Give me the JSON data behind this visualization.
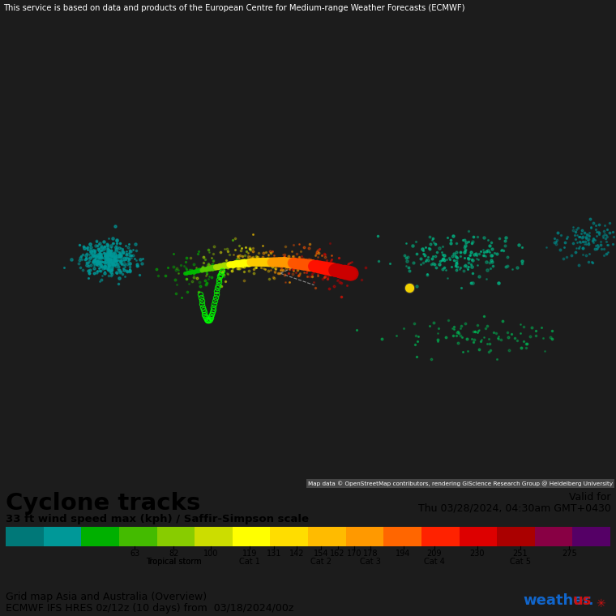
{
  "title_top": "This service is based on data and products of the European Centre for Medium-range Weather Forecasts (ECMWF)",
  "map_credit": "Map data © OpenStreetMap contributors, rendering GIScience Research Group @ Heidelberg University",
  "section_title": "Cyclone tracks",
  "section_subtitle": "33 ft wind speed max (kph) / Saffir-Simpson scale",
  "valid_for_label": "Valid for",
  "valid_for_date": "Thu 03/28/2024, 04:30am GMT+0430",
  "grid_map_label": "Grid map Asia and Australia (Overview)",
  "ecmwf_label": "ECMWF IFS HRES 0z/12z (10 days) from  03/18/2024/00z",
  "colorbar_colors": [
    "#007878",
    "#009898",
    "#00b000",
    "#44bb00",
    "#88cc00",
    "#ccdd00",
    "#ffff00",
    "#ffdd00",
    "#ffbb00",
    "#ff9900",
    "#ff6600",
    "#ff2200",
    "#dd0000",
    "#aa0000",
    "#880044",
    "#550066"
  ],
  "colorbar_labels": [
    {
      "val": 63,
      "num": "63",
      "cat": ""
    },
    {
      "val": 82,
      "num": "82",
      "cat": "Tropical storm"
    },
    {
      "val": 100,
      "num": "100",
      "cat": ""
    },
    {
      "val": 119,
      "num": "119",
      "cat": "Cat 1"
    },
    {
      "val": 131,
      "num": "131",
      "cat": ""
    },
    {
      "val": 142,
      "num": "142",
      "cat": ""
    },
    {
      "val": 154,
      "num": "154",
      "cat": "Cat 2"
    },
    {
      "val": 162,
      "num": "162",
      "cat": ""
    },
    {
      "val": 170,
      "num": "170",
      "cat": ""
    },
    {
      "val": 178,
      "num": "178",
      "cat": "Cat 3"
    },
    {
      "val": 194,
      "num": "194",
      "cat": ""
    },
    {
      "val": 209,
      "num": "209",
      "cat": "Cat 4"
    },
    {
      "val": 230,
      "num": "230",
      "cat": ""
    },
    {
      "val": 251,
      "num": "251",
      "cat": "Cat 5"
    },
    {
      "val": 275,
      "num": "275",
      "cat": ""
    }
  ],
  "bg_color": "#1c1c1c",
  "panel_bg": "#ffffff",
  "top_bar_color": "#4a4a4a",
  "map_bg": "#404040"
}
